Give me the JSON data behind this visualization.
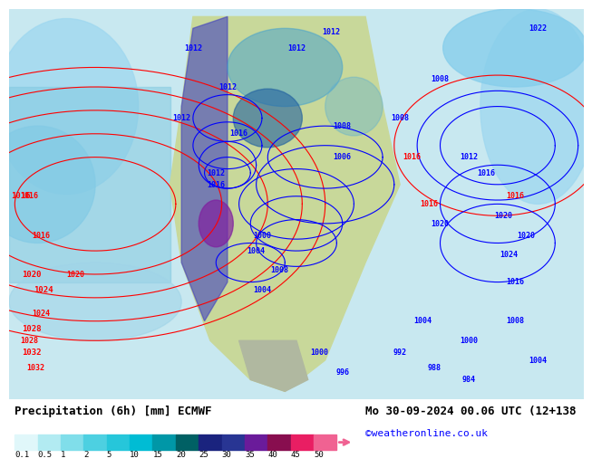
{
  "title_left": "Precipitation (6h) [mm] ECMWF",
  "title_right": "Mo 30-09-2024 00.06 UTC (12+138",
  "credit": "©weatheronline.co.uk",
  "colorbar_values": [
    0.1,
    0.5,
    1,
    2,
    5,
    10,
    15,
    20,
    25,
    30,
    35,
    40,
    45,
    50
  ],
  "colorbar_colors": [
    "#e0f7fa",
    "#b2ebf2",
    "#80deea",
    "#4dd0e1",
    "#26c6da",
    "#00bcd4",
    "#0097a7",
    "#006064",
    "#1a237e",
    "#283593",
    "#6a1b9a",
    "#880e4f",
    "#e91e63",
    "#f06292"
  ],
  "bg_color": "#ffffff",
  "map_bg": "#d0e8f0",
  "label_fontsize": 9,
  "credit_fontsize": 8
}
